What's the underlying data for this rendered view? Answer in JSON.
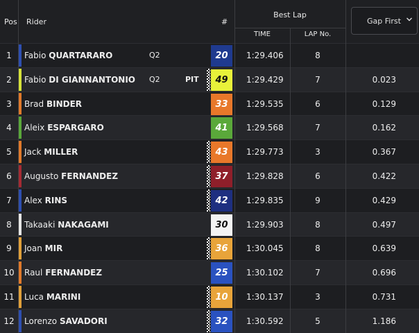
{
  "header": {
    "pos": "Pos",
    "rider": "Rider",
    "number": "#",
    "best_lap": "Best Lap",
    "time": "TIME",
    "lap_no": "LAP No.",
    "gap_select": "Gap First"
  },
  "icons": {
    "gap_dropdown": "chevron-down-icon"
  },
  "rows": [
    {
      "pos": "1",
      "first": "Fabio",
      "last": "QUARTARARO",
      "q": "Q2",
      "pit": "",
      "num": "20",
      "num_bg": "#1f3a8f",
      "bar": "#2e4fb0",
      "checker": false,
      "num_dark": false,
      "time": "1:29.406",
      "lap": "8",
      "gap": ""
    },
    {
      "pos": "2",
      "first": "Fabio",
      "last": "DI GIANNANTONIO",
      "q": "Q2",
      "pit": "PIT",
      "num": "49",
      "num_bg": "#e8f23a",
      "bar": "#d6e23a",
      "checker": true,
      "num_dark": true,
      "time": "1:29.429",
      "lap": "7",
      "gap": "0.023"
    },
    {
      "pos": "3",
      "first": "Brad",
      "last": "BINDER",
      "q": "",
      "pit": "",
      "num": "33",
      "num_bg": "#e8782a",
      "bar": "#e07a2b",
      "checker": false,
      "num_dark": false,
      "time": "1:29.535",
      "lap": "6",
      "gap": "0.129"
    },
    {
      "pos": "4",
      "first": "Aleix",
      "last": "ESPARGARO",
      "q": "",
      "pit": "",
      "num": "41",
      "num_bg": "#5aa83a",
      "bar": "#5aa83a",
      "checker": false,
      "num_dark": false,
      "time": "1:29.568",
      "lap": "7",
      "gap": "0.162"
    },
    {
      "pos": "5",
      "first": "Jack",
      "last": "MILLER",
      "q": "",
      "pit": "",
      "num": "43",
      "num_bg": "#e8782a",
      "bar": "#e07a2b",
      "checker": true,
      "num_dark": false,
      "time": "1:29.773",
      "lap": "3",
      "gap": "0.367"
    },
    {
      "pos": "6",
      "first": "Augusto",
      "last": "FERNANDEZ",
      "q": "",
      "pit": "",
      "num": "37",
      "num_bg": "#8f1f2a",
      "bar": "#a52a33",
      "checker": true,
      "num_dark": false,
      "time": "1:29.828",
      "lag": "",
      "lap": "6",
      "gap": "0.422"
    },
    {
      "pos": "7",
      "first": "Alex",
      "last": "RINS",
      "q": "",
      "pit": "",
      "num": "42",
      "num_bg": "#1e2f80",
      "bar": "#2e4fb0",
      "checker": true,
      "num_dark": false,
      "time": "1:29.835",
      "lap": "9",
      "gap": "0.429"
    },
    {
      "pos": "8",
      "first": "Takaaki",
      "last": "NAKAGAMI",
      "q": "",
      "pit": "",
      "num": "30",
      "num_bg": "#f4f4f4",
      "bar": "#e6e6e6",
      "checker": false,
      "num_dark": true,
      "time": "1:29.903",
      "lap": "8",
      "gap": "0.497"
    },
    {
      "pos": "9",
      "first": "Joan",
      "last": "MIR",
      "q": "",
      "pit": "",
      "num": "36",
      "num_bg": "#e8a43a",
      "bar": "#e0a03a",
      "checker": true,
      "num_dark": false,
      "time": "1:30.045",
      "lap": "8",
      "gap": "0.639"
    },
    {
      "pos": "10",
      "first": "Raul",
      "last": "FERNANDEZ",
      "q": "",
      "pit": "",
      "num": "25",
      "num_bg": "#2a52c0",
      "bar": "#e07a2b",
      "checker": false,
      "num_dark": false,
      "time": "1:30.102",
      "lap": "7",
      "gap": "0.696"
    },
    {
      "pos": "11",
      "first": "Luca",
      "last": "MARINI",
      "q": "",
      "pit": "",
      "num": "10",
      "num_bg": "#e8a43a",
      "bar": "#e0a03a",
      "checker": true,
      "num_dark": false,
      "time": "1:30.137",
      "lap": "3",
      "gap": "0.731"
    },
    {
      "pos": "12",
      "first": "Lorenzo",
      "last": "SAVADORI",
      "q": "",
      "pit": "",
      "num": "32",
      "num_bg": "#2a52c0",
      "bar": "#2e4fb0",
      "checker": true,
      "num_dark": false,
      "time": "1:30.592",
      "lap": "5",
      "gap": "1.186"
    }
  ]
}
